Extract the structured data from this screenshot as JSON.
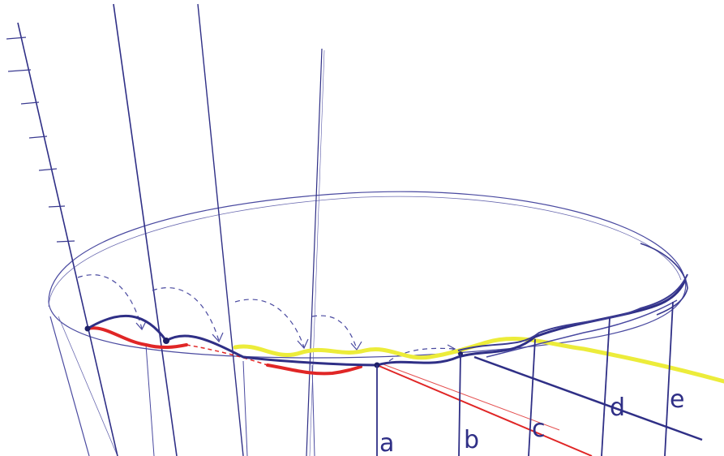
{
  "labels": {
    "a": "a",
    "b": "b",
    "c": "c",
    "d": "d",
    "e": "e"
  },
  "colors": {
    "ink_blue": "#2f2f86",
    "ink_blue_dark": "#1d1f66",
    "red": "#e02626",
    "yellow": "#ecec3a",
    "paper": "#ffffff"
  }
}
